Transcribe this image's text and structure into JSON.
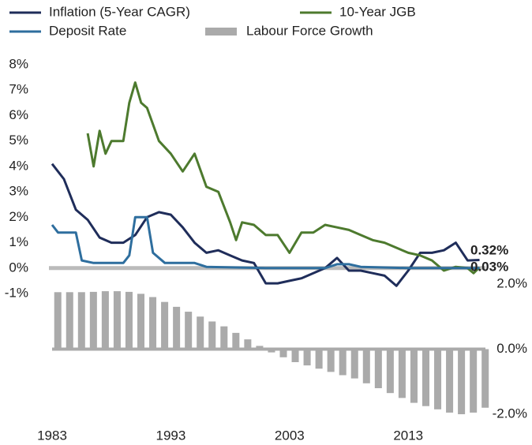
{
  "chart_data": [
    {
      "type": "line",
      "ylim": [
        -1,
        8
      ],
      "yticks": [
        {
          "value": 8,
          "label": "8%"
        },
        {
          "value": 7,
          "label": "7%"
        },
        {
          "value": 6,
          "label": "6%"
        },
        {
          "value": 5,
          "label": "5%"
        },
        {
          "value": 4,
          "label": "4%"
        },
        {
          "value": 3,
          "label": "3%"
        },
        {
          "value": 2,
          "label": "2%"
        },
        {
          "value": 1,
          "label": "1%"
        },
        {
          "value": 0,
          "label": "0%"
        },
        {
          "value": -1,
          "label": "-1%"
        }
      ],
      "annotations": [
        "0.32%",
        "0.03%"
      ],
      "series": [
        {
          "name": "Inflation (5-Year CAGR)",
          "color": "#1f2d5a",
          "x": [
            1983,
            1984,
            1985,
            1986,
            1987,
            1988,
            1989,
            1990,
            1991,
            1992,
            1993,
            1994,
            1995,
            1996,
            1997,
            1998,
            1999,
            2000,
            2001,
            2002,
            2003,
            2004,
            2005,
            2006,
            2007,
            2008,
            2009,
            2010,
            2011,
            2012,
            2013,
            2014,
            2015,
            2016,
            2017,
            2018,
            2019
          ],
          "values": [
            4.1,
            3.5,
            2.3,
            1.9,
            1.2,
            1.0,
            1.0,
            1.3,
            2.0,
            2.2,
            2.1,
            1.6,
            1.0,
            0.6,
            0.7,
            0.5,
            0.3,
            0.2,
            -0.6,
            -0.6,
            -0.5,
            -0.4,
            -0.2,
            0.0,
            0.4,
            -0.1,
            -0.1,
            -0.2,
            -0.3,
            -0.7,
            -0.1,
            0.6,
            0.6,
            0.7,
            1.0,
            0.3,
            0.32
          ]
        },
        {
          "name": "10-Year JGB",
          "color": "#4d7a2e",
          "x": [
            1986,
            1986.5,
            1987,
            1987.5,
            1988,
            1989,
            1989.5,
            1990,
            1990.5,
            1991,
            1992,
            1993,
            1994,
            1995,
            1996,
            1997,
            1998,
            1998.5,
            1999,
            2000,
            2001,
            2002,
            2003,
            2004,
            2005,
            2006,
            2007,
            2008,
            2009,
            2010,
            2011,
            2012,
            2013,
            2014,
            2015,
            2016,
            2017,
            2018,
            2018.5,
            2019
          ],
          "values": [
            5.3,
            4.0,
            5.4,
            4.5,
            5.0,
            5.0,
            6.5,
            7.3,
            6.5,
            6.3,
            5.0,
            4.5,
            3.8,
            4.5,
            3.2,
            3.0,
            1.8,
            1.1,
            1.8,
            1.7,
            1.3,
            1.3,
            0.6,
            1.4,
            1.4,
            1.7,
            1.6,
            1.5,
            1.3,
            1.1,
            1.0,
            0.8,
            0.6,
            0.5,
            0.3,
            -0.1,
            0.05,
            0.0,
            -0.2,
            0.03
          ]
        },
        {
          "name": "Deposit Rate",
          "color": "#2e6e9e",
          "x": [
            1983,
            1983.5,
            1985,
            1985.5,
            1986.5,
            1989,
            1989.5,
            1990,
            1991,
            1991.5,
            1992.5,
            1995,
            1996,
            2001,
            2006,
            2007,
            2008,
            2009,
            2013,
            2019
          ],
          "values": [
            1.7,
            1.4,
            1.4,
            0.3,
            0.2,
            0.2,
            0.5,
            2.0,
            2.0,
            0.6,
            0.2,
            0.2,
            0.05,
            0.0,
            0.0,
            0.15,
            0.15,
            0.05,
            0.0,
            0.0
          ]
        }
      ]
    },
    {
      "type": "bar",
      "xlim": [
        1983,
        2019.5
      ],
      "xticks": [
        1983,
        1993,
        2003,
        2013
      ],
      "ylim": [
        -2,
        2
      ],
      "yticks": [
        {
          "value": 2,
          "label": "2.0%"
        },
        {
          "value": 0,
          "label": "0.0%"
        },
        {
          "value": -2,
          "label": "-2.0%"
        }
      ],
      "x": [
        1983,
        1984,
        1985,
        1986,
        1987,
        1988,
        1989,
        1990,
        1991,
        1992,
        1993,
        1994,
        1995,
        1996,
        1997,
        1998,
        1999,
        2000,
        2001,
        2002,
        2003,
        2004,
        2005,
        2006,
        2007,
        2008,
        2009,
        2010,
        2011,
        2012,
        2013,
        2014,
        2015,
        2016,
        2017,
        2018,
        2019
      ],
      "series": [
        {
          "name": "Labour Force Growth",
          "color": "#aaaaaa",
          "values": [
            1.75,
            1.75,
            1.75,
            1.76,
            1.78,
            1.78,
            1.76,
            1.7,
            1.6,
            1.45,
            1.3,
            1.15,
            1.0,
            0.85,
            0.7,
            0.5,
            0.3,
            0.1,
            -0.1,
            -0.25,
            -0.4,
            -0.5,
            -0.6,
            -0.7,
            -0.8,
            -0.9,
            -1.05,
            -1.2,
            -1.35,
            -1.5,
            -1.65,
            -1.75,
            -1.85,
            -1.95,
            -2.0,
            -1.95,
            -1.8
          ]
        }
      ]
    }
  ]
}
